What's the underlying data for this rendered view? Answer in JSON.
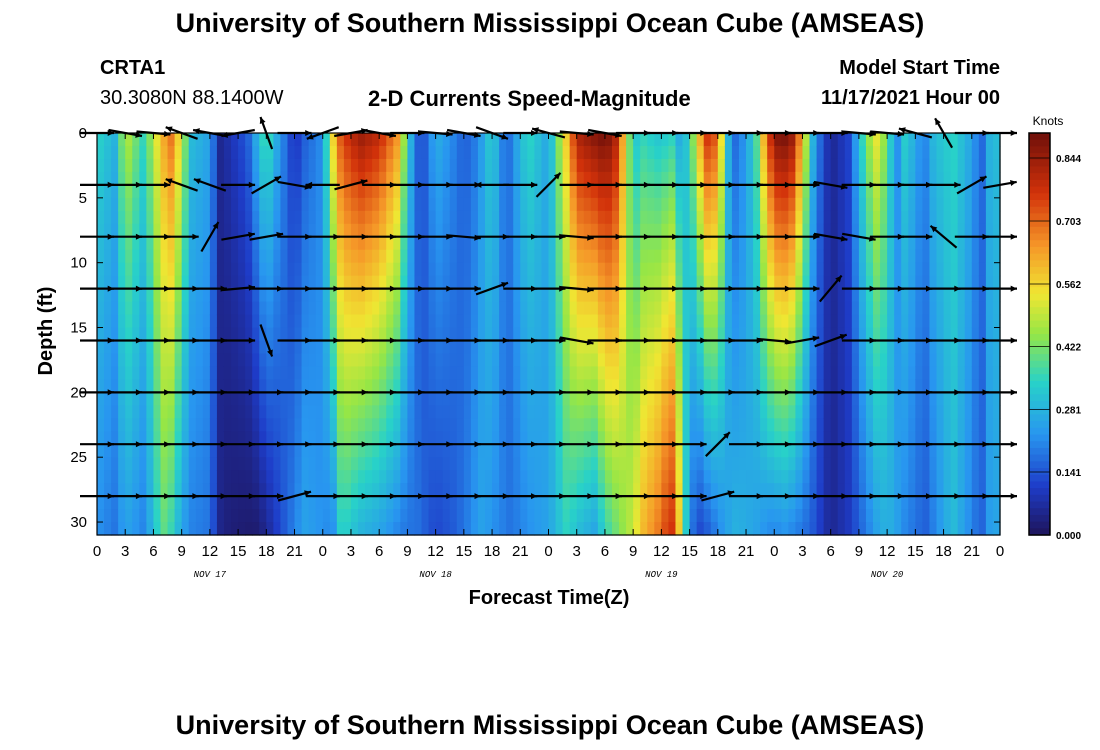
{
  "header": {
    "title": "University of Southern Mississippi Ocean Cube (AMSEAS)",
    "station": "CRTA1",
    "coords": "30.3080N  88.1400W",
    "chart_title": "2-D Currents Speed-Magnitude",
    "model_start_label": "Model Start Time",
    "model_start_value": "11/17/2021 Hour 00"
  },
  "footer": {
    "title": "University of Southern Mississippi Ocean Cube (AMSEAS)"
  },
  "colors": {
    "background": "#ffffff",
    "arrows": "#000000"
  },
  "chart_data": {
    "type": "heatmap",
    "title": "2-D Currents Speed-Magnitude",
    "xlabel": "Forecast Time(Z)",
    "ylabel": "Depth (ft)",
    "colorbar_label": "Knots",
    "colorbar_ticks": [
      "0.844",
      "0.703",
      "0.562",
      "0.422",
      "0.281",
      "0.141",
      "0.000"
    ],
    "colorbar_values": [
      0.844,
      0.703,
      0.562,
      0.422,
      0.281,
      0.141,
      0.0
    ],
    "vmin": 0.0,
    "vmax": 0.9,
    "xlim": [
      0,
      96
    ],
    "ylim": [
      0,
      31
    ],
    "x_tick_labels": [
      "0",
      "3",
      "6",
      "9",
      "12",
      "15",
      "18",
      "21",
      "0",
      "3",
      "6",
      "9",
      "12",
      "15",
      "18",
      "21",
      "0",
      "3",
      "6",
      "9",
      "12",
      "15",
      "18",
      "21",
      "0",
      "3",
      "6",
      "9",
      "12",
      "15",
      "18",
      "21",
      "0"
    ],
    "y_tick_values": [
      0,
      5,
      10,
      15,
      20,
      25,
      30
    ],
    "y_tick_labels": [
      "0",
      "5",
      "10",
      "15",
      "20",
      "25",
      "30"
    ],
    "date_labels": [
      {
        "hour": 12,
        "label": "NOV 17"
      },
      {
        "hour": 36,
        "label": "NOV 18"
      },
      {
        "hour": 60,
        "label": "NOV 19"
      },
      {
        "hour": 84,
        "label": "NOV 20"
      }
    ],
    "speed_profile": {
      "hours": [
        0,
        2,
        3,
        5,
        7,
        8,
        9,
        10,
        12,
        13,
        14,
        16,
        17,
        18,
        19,
        20,
        21,
        22,
        24,
        25,
        26,
        28,
        30,
        32,
        33,
        34,
        35,
        36,
        38,
        39,
        40,
        41,
        42,
        43,
        44,
        45,
        46,
        48,
        50,
        51,
        53,
        54,
        55,
        56,
        57,
        58,
        60,
        61,
        62,
        63,
        64,
        65,
        66,
        67,
        68,
        70,
        71,
        72,
        73,
        74,
        75,
        76,
        77,
        78,
        80,
        81,
        82,
        83,
        84,
        85,
        86,
        87,
        88,
        89,
        90,
        91,
        92,
        93,
        94,
        95,
        96
      ],
      "surface_knots": [
        0.35,
        0.28,
        0.5,
        0.35,
        0.62,
        0.7,
        0.5,
        0.3,
        0.25,
        0.05,
        0.08,
        0.15,
        0.28,
        0.4,
        0.28,
        0.18,
        0.08,
        0.15,
        0.22,
        0.55,
        0.75,
        0.85,
        0.8,
        0.65,
        0.35,
        0.15,
        0.15,
        0.28,
        0.2,
        0.15,
        0.18,
        0.25,
        0.35,
        0.2,
        0.18,
        0.3,
        0.35,
        0.25,
        0.6,
        0.82,
        0.88,
        0.9,
        0.85,
        0.6,
        0.3,
        0.35,
        0.3,
        0.35,
        0.25,
        0.35,
        0.6,
        0.8,
        0.7,
        0.3,
        0.15,
        0.35,
        0.65,
        0.88,
        0.9,
        0.85,
        0.6,
        0.3,
        0.15,
        0.05,
        0.12,
        0.3,
        0.45,
        0.55,
        0.4,
        0.2,
        0.35,
        0.25,
        0.2,
        0.3,
        0.32,
        0.35,
        0.3,
        0.25,
        0.15,
        0.3,
        0.3
      ],
      "deep_knots": [
        0.22,
        0.18,
        0.25,
        0.2,
        0.4,
        0.35,
        0.25,
        0.2,
        0.18,
        0.05,
        0.03,
        0.02,
        0.02,
        0.05,
        0.1,
        0.15,
        0.2,
        0.25,
        0.22,
        0.2,
        0.35,
        0.28,
        0.25,
        0.2,
        0.18,
        0.18,
        0.15,
        0.12,
        0.15,
        0.18,
        0.22,
        0.25,
        0.22,
        0.2,
        0.18,
        0.2,
        0.22,
        0.25,
        0.35,
        0.3,
        0.25,
        0.35,
        0.4,
        0.45,
        0.5,
        0.6,
        0.7,
        0.8,
        0.55,
        0.2,
        0.12,
        0.15,
        0.2,
        0.25,
        0.28,
        0.25,
        0.22,
        0.2,
        0.22,
        0.2,
        0.18,
        0.15,
        0.1,
        0.05,
        0.1,
        0.15,
        0.2,
        0.25,
        0.28,
        0.25,
        0.2,
        0.18,
        0.15,
        0.2,
        0.25,
        0.3,
        0.25,
        0.2,
        0.15,
        0.25,
        0.25
      ]
    },
    "vector_depths_ft": [
      0,
      4,
      8,
      12,
      16,
      20,
      24,
      28
    ],
    "vector_hours": [
      0,
      3,
      6,
      9,
      12,
      15,
      18,
      21,
      24,
      27,
      30,
      33,
      36,
      39,
      42,
      45,
      48,
      51,
      54,
      57,
      60,
      63,
      66,
      69,
      72,
      75,
      78,
      81,
      84,
      87,
      90,
      93,
      96
    ],
    "vector_direction_deg": [
      [
        0,
        10,
        5,
        200,
        190,
        170,
        250,
        0,
        160,
        350,
        10,
        0,
        5,
        10,
        20,
        0,
        195,
        5,
        10,
        0,
        0,
        0,
        0,
        0,
        0,
        0,
        0,
        5,
        5,
        195,
        240,
        0,
        0
      ],
      [
        0,
        0,
        0,
        200,
        200,
        0,
        330,
        10,
        180,
        345,
        0,
        0,
        0,
        0,
        180,
        0,
        315,
        0,
        0,
        0,
        0,
        0,
        0,
        0,
        0,
        0,
        10,
        0,
        0,
        0,
        0,
        330,
        350
      ],
      [
        0,
        0,
        0,
        0,
        300,
        350,
        350,
        0,
        0,
        0,
        0,
        0,
        0,
        5,
        0,
        0,
        0,
        5,
        0,
        0,
        0,
        0,
        0,
        0,
        0,
        0,
        10,
        10,
        0,
        0,
        220,
        0,
        0
      ],
      [
        0,
        0,
        0,
        0,
        0,
        355,
        0,
        0,
        0,
        0,
        0,
        0,
        0,
        0,
        340,
        0,
        0,
        5,
        0,
        0,
        0,
        0,
        0,
        0,
        0,
        0,
        310,
        0,
        0,
        0,
        0,
        0,
        0
      ],
      [
        0,
        0,
        0,
        0,
        0,
        0,
        70,
        0,
        0,
        0,
        0,
        0,
        0,
        0,
        0,
        0,
        0,
        10,
        0,
        0,
        0,
        0,
        0,
        0,
        5,
        350,
        340,
        0,
        0,
        0,
        0,
        0,
        0
      ],
      [
        0,
        0,
        0,
        0,
        0,
        0,
        0,
        0,
        0,
        0,
        0,
        0,
        0,
        0,
        0,
        0,
        0,
        0,
        0,
        0,
        0,
        0,
        0,
        0,
        0,
        0,
        0,
        0,
        0,
        0,
        0,
        0,
        0
      ],
      [
        0,
        0,
        0,
        0,
        0,
        0,
        0,
        0,
        0,
        0,
        0,
        0,
        0,
        0,
        0,
        0,
        0,
        0,
        0,
        0,
        0,
        0,
        315,
        0,
        0,
        0,
        0,
        0,
        0,
        0,
        0,
        0,
        0
      ],
      [
        0,
        0,
        0,
        0,
        0,
        0,
        0,
        345,
        0,
        0,
        0,
        0,
        0,
        0,
        0,
        0,
        0,
        0,
        0,
        0,
        0,
        0,
        345,
        0,
        0,
        0,
        0,
        0,
        0,
        0,
        0,
        0,
        0
      ]
    ]
  }
}
